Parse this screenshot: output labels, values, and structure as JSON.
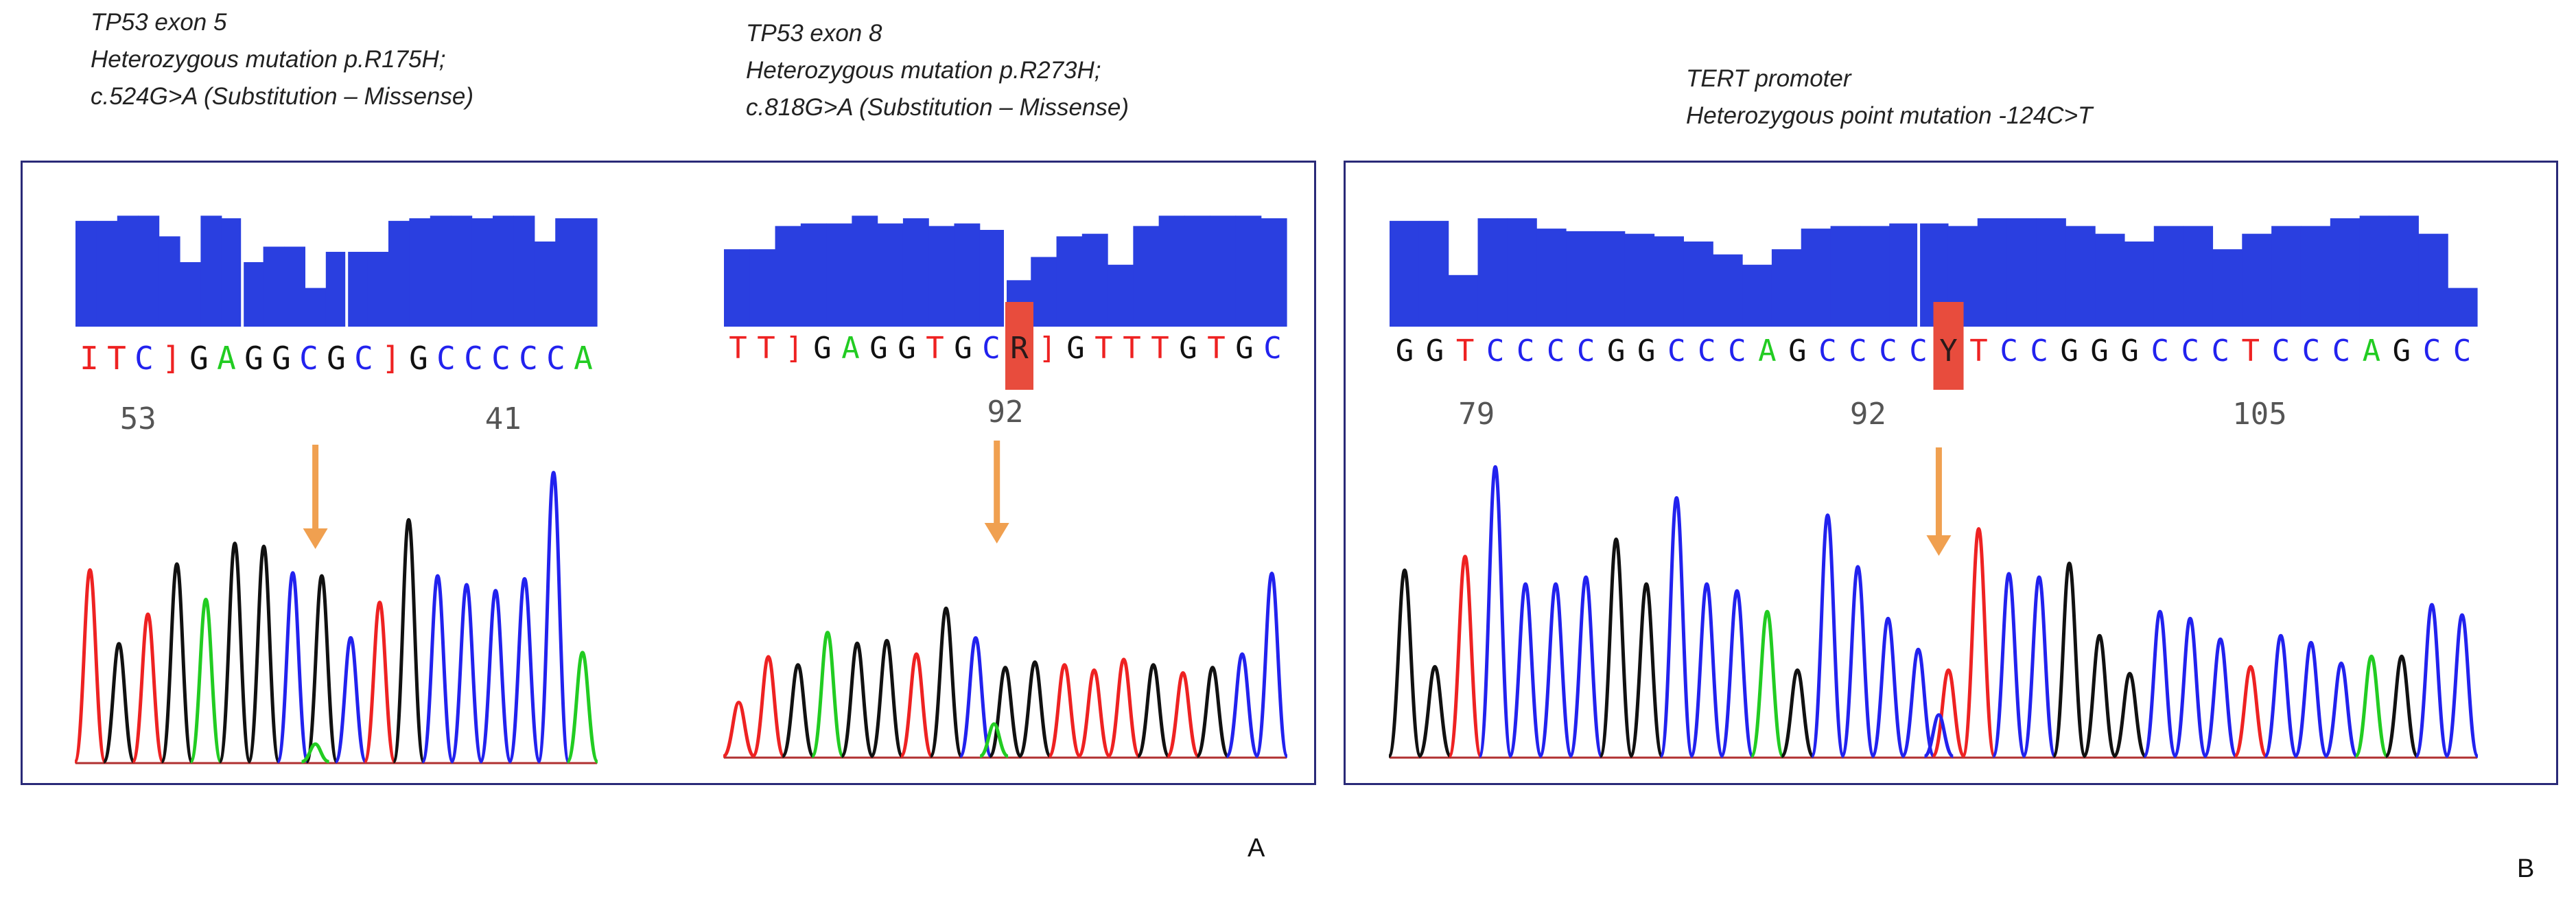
{
  "colors": {
    "A": "#22cc22",
    "C": "#2222ee",
    "G": "#111111",
    "T": "#ee2222",
    "N": "#ee2222",
    "quality": "#2a3fe0",
    "arrow": "#f0a050",
    "highlight": "#e84c3d",
    "border": "#2a2a78"
  },
  "panel_labels": {
    "a": "A",
    "b": "B"
  },
  "panels": [
    {
      "id": "tp53-exon5",
      "caption": [
        "TP53 exon 5",
        "Heterozygous mutation p.R175H;",
        "c.524G>A (Substitution – Missense)"
      ],
      "sequence": "ITC]GAGGCGC]GCCCCCA",
      "positions": [
        "53",
        "41"
      ],
      "quality_levels": [
        0.82,
        0.82,
        0.86,
        0.86,
        0.7,
        0.5,
        0.86,
        0.84,
        0.5,
        0.62,
        0.62,
        0.3,
        0.58,
        0.58,
        0.58,
        0.82,
        0.84,
        0.86,
        0.86,
        0.84,
        0.86,
        0.86,
        0.66,
        0.84,
        0.84
      ],
      "quality_gaps": [
        8,
        13
      ],
      "peaks": [
        {
          "b": "T",
          "h": 0.65
        },
        {
          "b": "G",
          "h": 0.4
        },
        {
          "b": "T",
          "h": 0.5
        },
        {
          "b": "G",
          "h": 0.67
        },
        {
          "b": "A",
          "h": 0.55
        },
        {
          "b": "G",
          "h": 0.74
        },
        {
          "b": "G",
          "h": 0.73
        },
        {
          "b": "C",
          "h": 0.64
        },
        {
          "b": "G",
          "h": 0.63
        },
        {
          "b": "C",
          "h": 0.42
        },
        {
          "b": "T",
          "h": 0.54
        },
        {
          "b": "G",
          "h": 0.82
        },
        {
          "b": "C",
          "h": 0.63
        },
        {
          "b": "C",
          "h": 0.6
        },
        {
          "b": "C",
          "h": 0.58
        },
        {
          "b": "C",
          "h": 0.62
        },
        {
          "b": "C",
          "h": 0.98
        },
        {
          "b": "A",
          "h": 0.37
        }
      ],
      "minor_peaks": [
        {
          "b": "A",
          "at": 0.46,
          "h": 0.06
        }
      ]
    },
    {
      "id": "tp53-exon8",
      "caption": [
        "TP53 exon 8",
        "Heterozygous mutation p.R273H;",
        "c.818G>A (Substitution – Missense)"
      ],
      "sequence": "TT]GAGGTGCR]GTTTGTGC",
      "positions": [
        "92"
      ],
      "quality_levels": [
        0.6,
        0.6,
        0.78,
        0.8,
        0.8,
        0.86,
        0.8,
        0.84,
        0.78,
        0.8,
        0.75,
        0.36,
        0.54,
        0.7,
        0.72,
        0.48,
        0.78,
        0.86,
        0.86,
        0.86,
        0.86,
        0.84
      ],
      "quality_gaps": [
        11
      ],
      "peaks": [
        {
          "b": "T",
          "h": 0.2
        },
        {
          "b": "T",
          "h": 0.37
        },
        {
          "b": "G",
          "h": 0.34
        },
        {
          "b": "A",
          "h": 0.46
        },
        {
          "b": "G",
          "h": 0.42
        },
        {
          "b": "G",
          "h": 0.43
        },
        {
          "b": "T",
          "h": 0.38
        },
        {
          "b": "G",
          "h": 0.55
        },
        {
          "b": "C",
          "h": 0.44
        },
        {
          "b": "G",
          "h": 0.33
        },
        {
          "b": "G",
          "h": 0.35
        },
        {
          "b": "T",
          "h": 0.34
        },
        {
          "b": "T",
          "h": 0.32
        },
        {
          "b": "T",
          "h": 0.36
        },
        {
          "b": "G",
          "h": 0.34
        },
        {
          "b": "T",
          "h": 0.31
        },
        {
          "b": "G",
          "h": 0.33
        },
        {
          "b": "C",
          "h": 0.38
        },
        {
          "b": "C",
          "h": 0.68
        }
      ],
      "minor_peaks": [
        {
          "b": "A",
          "at": 0.48,
          "h": 0.12
        }
      ]
    },
    {
      "id": "tert-promoter",
      "caption": [
        "TERT promoter",
        "Heterozygous point mutation -124C>T"
      ],
      "sequence": "GGTCCCCGGCCCAGCCCCYTCCGGGCCCTCCCAGCC",
      "positions": [
        "79",
        "92",
        "105"
      ],
      "quality_levels": [
        0.82,
        0.82,
        0.4,
        0.84,
        0.84,
        0.76,
        0.74,
        0.74,
        0.72,
        0.7,
        0.66,
        0.56,
        0.48,
        0.6,
        0.76,
        0.78,
        0.78,
        0.8,
        0.8,
        0.78,
        0.84,
        0.84,
        0.84,
        0.78,
        0.72,
        0.66,
        0.78,
        0.78,
        0.6,
        0.72,
        0.78,
        0.78,
        0.84,
        0.86,
        0.86,
        0.72,
        0.3
      ],
      "quality_gaps": [
        18
      ],
      "peaks": [
        {
          "b": "G",
          "h": 0.54
        },
        {
          "b": "G",
          "h": 0.26
        },
        {
          "b": "T",
          "h": 0.58
        },
        {
          "b": "C",
          "h": 0.84
        },
        {
          "b": "C",
          "h": 0.5
        },
        {
          "b": "C",
          "h": 0.5
        },
        {
          "b": "C",
          "h": 0.52
        },
        {
          "b": "G",
          "h": 0.63
        },
        {
          "b": "G",
          "h": 0.5
        },
        {
          "b": "C",
          "h": 0.75
        },
        {
          "b": "C",
          "h": 0.5
        },
        {
          "b": "C",
          "h": 0.48
        },
        {
          "b": "A",
          "h": 0.42
        },
        {
          "b": "G",
          "h": 0.25
        },
        {
          "b": "C",
          "h": 0.7
        },
        {
          "b": "C",
          "h": 0.55
        },
        {
          "b": "C",
          "h": 0.4
        },
        {
          "b": "C",
          "h": 0.31
        },
        {
          "b": "T",
          "h": 0.25
        },
        {
          "b": "T",
          "h": 0.66
        },
        {
          "b": "C",
          "h": 0.53
        },
        {
          "b": "C",
          "h": 0.52
        },
        {
          "b": "G",
          "h": 0.56
        },
        {
          "b": "G",
          "h": 0.35
        },
        {
          "b": "G",
          "h": 0.24
        },
        {
          "b": "C",
          "h": 0.42
        },
        {
          "b": "C",
          "h": 0.4
        },
        {
          "b": "C",
          "h": 0.34
        },
        {
          "b": "T",
          "h": 0.26
        },
        {
          "b": "C",
          "h": 0.35
        },
        {
          "b": "C",
          "h": 0.33
        },
        {
          "b": "C",
          "h": 0.27
        },
        {
          "b": "A",
          "h": 0.29
        },
        {
          "b": "G",
          "h": 0.29
        },
        {
          "b": "C",
          "h": 0.44
        },
        {
          "b": "C",
          "h": 0.41
        }
      ],
      "minor_peaks": [
        {
          "b": "C",
          "at": 0.505,
          "h": 0.12
        }
      ]
    }
  ]
}
